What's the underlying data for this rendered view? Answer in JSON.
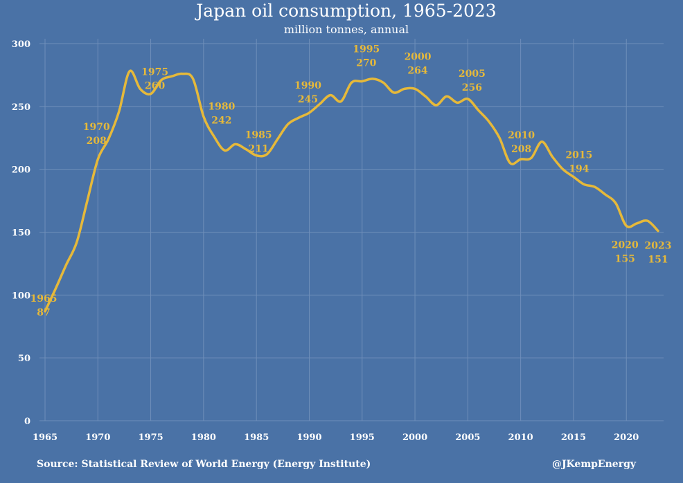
{
  "colors": {
    "background": "#4a72a6",
    "line": "#e6b93a",
    "grid": "#6f8fba",
    "text": "#ffffff"
  },
  "footer": {
    "source": "Source: Statistical Review of World Energy (Energy Institute)",
    "handle": "@JKempEnergy"
  },
  "chart_data": {
    "type": "line",
    "title": "Japan oil consumption, 1965-2023",
    "subtitle": "million tonnes, annual",
    "xlabel": "",
    "ylabel": "",
    "xlim": [
      1965,
      2023
    ],
    "ylim": [
      0,
      300
    ],
    "yticks": [
      0,
      50,
      100,
      150,
      200,
      250,
      300
    ],
    "xticks": [
      1965,
      1970,
      1975,
      1980,
      1985,
      1990,
      1995,
      2000,
      2005,
      2010,
      2015,
      2020
    ],
    "grid": true,
    "series": [
      {
        "x": [
          1965,
          1966,
          1967,
          1968,
          1969,
          1970,
          1971,
          1972,
          1973,
          1974,
          1975,
          1976,
          1977,
          1978,
          1979,
          1980,
          1981,
          1982,
          1983,
          1984,
          1985,
          1986,
          1987,
          1988,
          1989,
          1990,
          1991,
          1992,
          1993,
          1994,
          1995,
          1996,
          1997,
          1998,
          1999,
          2000,
          2001,
          2002,
          2003,
          2004,
          2005,
          2006,
          2007,
          2008,
          2009,
          2010,
          2011,
          2012,
          2013,
          2014,
          2015,
          2016,
          2017,
          2018,
          2019,
          2020,
          2021,
          2022,
          2023
        ],
        "y": [
          87,
          105,
          124,
          142,
          175,
          208,
          224,
          246,
          278,
          264,
          260,
          271,
          274,
          276,
          272,
          242,
          226,
          215,
          220,
          216,
          211,
          212,
          224,
          236,
          241,
          245,
          252,
          259,
          254,
          269,
          270,
          272,
          269,
          261,
          264,
          264,
          258,
          251,
          258,
          253,
          256,
          247,
          238,
          225,
          205,
          208,
          209,
          222,
          210,
          200,
          194,
          188,
          186,
          180,
          173,
          155,
          157,
          159,
          151
        ]
      }
    ],
    "data_labels": [
      {
        "year": "1965",
        "value": "87"
      },
      {
        "year": "1970",
        "value": "208"
      },
      {
        "year": "1975",
        "value": "260"
      },
      {
        "year": "1980",
        "value": "242"
      },
      {
        "year": "1985",
        "value": "211"
      },
      {
        "year": "1990",
        "value": "245"
      },
      {
        "year": "1995",
        "value": "270"
      },
      {
        "year": "2000",
        "value": "264"
      },
      {
        "year": "2005",
        "value": "256"
      },
      {
        "year": "2010",
        "value": "208"
      },
      {
        "year": "2015",
        "value": "194"
      },
      {
        "year": "2020",
        "value": "155"
      },
      {
        "year": "2023",
        "value": "151"
      }
    ]
  }
}
